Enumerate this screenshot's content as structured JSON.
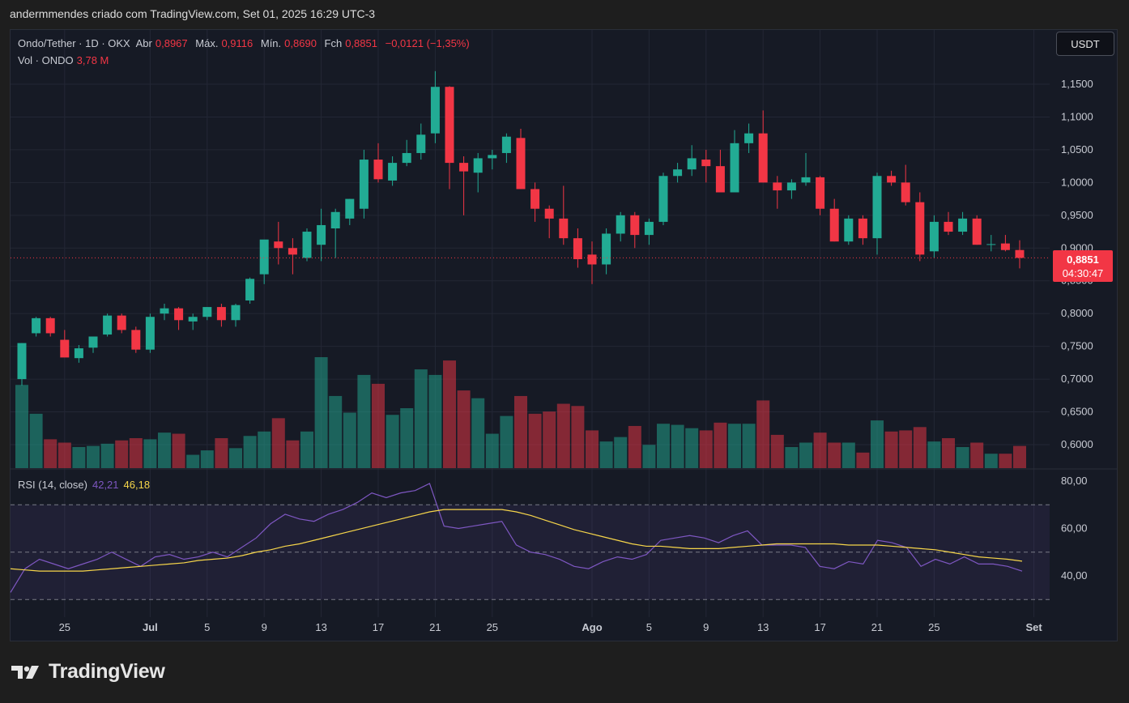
{
  "header": {
    "attribution": "andermmendes criado com TradingView.com, Set 01, 2025 16:29 UTC-3"
  },
  "legend": {
    "symbol": "Ondo/Tether · 1D · OKX",
    "open_label": "Abr",
    "open_value": "0,8967",
    "high_label": "Máx.",
    "high_value": "0,9116",
    "low_label": "Mín.",
    "low_value": "0,8690",
    "close_label": "Fch",
    "close_value": "0,8851",
    "change": "−0,0121 (−1,35%)",
    "volume_label": "Vol · ONDO",
    "volume_value": "3,78 M"
  },
  "rsi_legend": {
    "label": "RSI (14, close)",
    "rsi_value": "42,21",
    "ma_value": "46,18"
  },
  "currency_button": "USDT",
  "last_price": {
    "price": "0,8851",
    "countdown": "04:30:47"
  },
  "brand": "TradingView",
  "colors": {
    "up": "#22ab94",
    "down": "#f23645",
    "rsi_line": "#7e57c2",
    "rsi_ma": "#f7d64a",
    "background": "#161a25"
  },
  "chart_data": [
    {
      "type": "candlestick",
      "title": "Ondo/Tether · 1D · OKX",
      "price_axis_ticks": [
        "1,1500",
        "1,1000",
        "1,0500",
        "1,0000",
        "0,9500",
        "0,9000",
        "0,8500",
        "0,8000",
        "0,7500",
        "0,7000",
        "0,6500",
        "0,6000"
      ],
      "ylim": [
        0.58,
        1.18
      ],
      "x_axis_ticks": [
        {
          "label": "25",
          "index": 3
        },
        {
          "label": "Jul",
          "index": 9,
          "month": true
        },
        {
          "label": "5",
          "index": 13
        },
        {
          "label": "9",
          "index": 17
        },
        {
          "label": "13",
          "index": 21
        },
        {
          "label": "17",
          "index": 25
        },
        {
          "label": "21",
          "index": 29
        },
        {
          "label": "25",
          "index": 33
        },
        {
          "label": "Ago",
          "index": 40,
          "month": true
        },
        {
          "label": "5",
          "index": 44
        },
        {
          "label": "9",
          "index": 48
        },
        {
          "label": "13",
          "index": 52
        },
        {
          "label": "17",
          "index": 56
        },
        {
          "label": "21",
          "index": 60
        },
        {
          "label": "25",
          "index": 64
        },
        {
          "label": "Set",
          "index": 71,
          "month": true
        }
      ],
      "candles": [
        [
          0.7,
          0.755,
          0.69,
          0.755
        ],
        [
          0.77,
          0.795,
          0.765,
          0.793
        ],
        [
          0.793,
          0.795,
          0.765,
          0.77
        ],
        [
          0.76,
          0.775,
          0.735,
          0.733
        ],
        [
          0.732,
          0.752,
          0.725,
          0.747
        ],
        [
          0.748,
          0.765,
          0.74,
          0.765
        ],
        [
          0.768,
          0.8,
          0.765,
          0.797
        ],
        [
          0.797,
          0.8,
          0.77,
          0.775
        ],
        [
          0.775,
          0.78,
          0.74,
          0.745
        ],
        [
          0.745,
          0.8,
          0.74,
          0.795
        ],
        [
          0.8,
          0.815,
          0.79,
          0.808
        ],
        [
          0.808,
          0.81,
          0.775,
          0.79
        ],
        [
          0.788,
          0.8,
          0.775,
          0.795
        ],
        [
          0.795,
          0.81,
          0.79,
          0.81
        ],
        [
          0.81,
          0.815,
          0.78,
          0.79
        ],
        [
          0.79,
          0.815,
          0.78,
          0.813
        ],
        [
          0.82,
          0.855,
          0.815,
          0.853
        ],
        [
          0.86,
          0.91,
          0.845,
          0.913
        ],
        [
          0.91,
          0.94,
          0.875,
          0.9
        ],
        [
          0.9,
          0.915,
          0.86,
          0.89
        ],
        [
          0.885,
          0.93,
          0.88,
          0.925
        ],
        [
          0.905,
          0.96,
          0.88,
          0.935
        ],
        [
          0.93,
          0.96,
          0.885,
          0.955
        ],
        [
          0.945,
          0.975,
          0.935,
          0.975
        ],
        [
          0.96,
          1.05,
          0.945,
          1.035
        ],
        [
          1.035,
          1.06,
          1.0,
          1.005
        ],
        [
          1.003,
          1.04,
          0.995,
          1.03
        ],
        [
          1.03,
          1.065,
          1.025,
          1.045
        ],
        [
          1.045,
          1.09,
          1.035,
          1.073
        ],
        [
          1.075,
          1.17,
          1.06,
          1.146
        ],
        [
          1.146,
          1.147,
          0.99,
          1.03
        ],
        [
          1.03,
          1.04,
          0.95,
          1.017
        ],
        [
          1.015,
          1.045,
          0.985,
          1.037
        ],
        [
          1.037,
          1.05,
          1.02,
          1.042
        ],
        [
          1.045,
          1.075,
          1.03,
          1.07
        ],
        [
          1.068,
          1.082,
          0.99,
          0.99
        ],
        [
          0.99,
          1.0,
          0.94,
          0.96
        ],
        [
          0.96,
          0.965,
          0.915,
          0.945
        ],
        [
          0.945,
          0.995,
          0.905,
          0.915
        ],
        [
          0.915,
          0.93,
          0.87,
          0.883
        ],
        [
          0.89,
          0.91,
          0.845,
          0.875
        ],
        [
          0.875,
          0.93,
          0.86,
          0.922
        ],
        [
          0.922,
          0.955,
          0.91,
          0.95
        ],
        [
          0.95,
          0.955,
          0.9,
          0.92
        ],
        [
          0.92,
          0.945,
          0.905,
          0.94
        ],
        [
          0.94,
          1.015,
          0.935,
          1.01
        ],
        [
          1.01,
          1.03,
          1.0,
          1.02
        ],
        [
          1.02,
          1.057,
          1.01,
          1.037
        ],
        [
          1.035,
          1.05,
          1.0,
          1.025
        ],
        [
          1.025,
          1.05,
          0.985,
          0.985
        ],
        [
          0.985,
          1.08,
          0.985,
          1.06
        ],
        [
          1.06,
          1.09,
          1.045,
          1.075
        ],
        [
          1.075,
          1.11,
          1.0,
          1.0
        ],
        [
          1.0,
          1.01,
          0.96,
          0.988
        ],
        [
          0.988,
          1.005,
          0.975,
          1.0
        ],
        [
          1.0,
          1.045,
          0.995,
          1.008
        ],
        [
          1.008,
          1.01,
          0.95,
          0.96
        ],
        [
          0.96,
          0.975,
          0.91,
          0.91
        ],
        [
          0.91,
          0.95,
          0.905,
          0.945
        ],
        [
          0.945,
          0.95,
          0.905,
          0.915
        ],
        [
          0.915,
          1.015,
          0.89,
          1.01
        ],
        [
          1.01,
          1.018,
          0.995,
          1.0
        ],
        [
          1.0,
          1.027,
          0.965,
          0.97
        ],
        [
          0.97,
          0.985,
          0.88,
          0.89
        ],
        [
          0.895,
          0.95,
          0.885,
          0.94
        ],
        [
          0.94,
          0.955,
          0.92,
          0.925
        ],
        [
          0.925,
          0.955,
          0.92,
          0.945
        ],
        [
          0.945,
          0.95,
          0.905,
          0.905
        ],
        [
          0.905,
          0.92,
          0.895,
          0.906
        ],
        [
          0.907,
          0.92,
          0.895,
          0.897
        ],
        [
          0.897,
          0.912,
          0.869,
          0.885
        ]
      ],
      "volume": [
        [
          0.75,
          "up"
        ],
        [
          0.49,
          "up"
        ],
        [
          0.26,
          "down"
        ],
        [
          0.23,
          "down"
        ],
        [
          0.19,
          "up"
        ],
        [
          0.2,
          "up"
        ],
        [
          0.22,
          "up"
        ],
        [
          0.25,
          "down"
        ],
        [
          0.27,
          "down"
        ],
        [
          0.26,
          "up"
        ],
        [
          0.32,
          "up"
        ],
        [
          0.31,
          "down"
        ],
        [
          0.12,
          "up"
        ],
        [
          0.16,
          "up"
        ],
        [
          0.27,
          "down"
        ],
        [
          0.18,
          "up"
        ],
        [
          0.29,
          "up"
        ],
        [
          0.33,
          "up"
        ],
        [
          0.45,
          "down"
        ],
        [
          0.25,
          "down"
        ],
        [
          0.33,
          "up"
        ],
        [
          1.0,
          "up"
        ],
        [
          0.65,
          "up"
        ],
        [
          0.5,
          "up"
        ],
        [
          0.84,
          "up"
        ],
        [
          0.76,
          "down"
        ],
        [
          0.48,
          "up"
        ],
        [
          0.54,
          "up"
        ],
        [
          0.89,
          "up"
        ],
        [
          0.84,
          "up"
        ],
        [
          0.97,
          "down"
        ],
        [
          0.7,
          "down"
        ],
        [
          0.63,
          "up"
        ],
        [
          0.31,
          "up"
        ],
        [
          0.47,
          "up"
        ],
        [
          0.65,
          "down"
        ],
        [
          0.49,
          "down"
        ],
        [
          0.51,
          "down"
        ],
        [
          0.58,
          "down"
        ],
        [
          0.56,
          "down"
        ],
        [
          0.34,
          "down"
        ],
        [
          0.24,
          "up"
        ],
        [
          0.28,
          "up"
        ],
        [
          0.38,
          "down"
        ],
        [
          0.21,
          "up"
        ],
        [
          0.4,
          "up"
        ],
        [
          0.39,
          "up"
        ],
        [
          0.36,
          "up"
        ],
        [
          0.34,
          "down"
        ],
        [
          0.41,
          "down"
        ],
        [
          0.4,
          "up"
        ],
        [
          0.4,
          "up"
        ],
        [
          0.61,
          "down"
        ],
        [
          0.3,
          "down"
        ],
        [
          0.19,
          "up"
        ],
        [
          0.23,
          "up"
        ],
        [
          0.32,
          "down"
        ],
        [
          0.23,
          "down"
        ],
        [
          0.23,
          "up"
        ],
        [
          0.14,
          "down"
        ],
        [
          0.43,
          "up"
        ],
        [
          0.33,
          "down"
        ],
        [
          0.34,
          "down"
        ],
        [
          0.37,
          "down"
        ],
        [
          0.24,
          "up"
        ],
        [
          0.27,
          "down"
        ],
        [
          0.19,
          "up"
        ],
        [
          0.23,
          "down"
        ],
        [
          0.13,
          "up"
        ],
        [
          0.13,
          "down"
        ],
        [
          0.2,
          "down"
        ]
      ]
    },
    {
      "type": "line",
      "title": "RSI (14, close)",
      "ylim": [
        27,
        83
      ],
      "y_ticks": [
        "80,00",
        "60,00",
        "40,00"
      ],
      "bands": [
        30,
        50,
        70
      ],
      "series": [
        {
          "name": "RSI",
          "values": [
            33,
            43,
            47,
            45,
            43,
            45,
            47,
            50,
            47,
            44,
            48,
            49,
            47,
            48,
            50,
            48,
            52,
            56,
            62,
            66,
            64,
            63,
            66,
            68,
            71,
            75,
            73,
            75,
            76,
            79,
            61,
            60,
            61,
            62,
            63,
            53,
            50,
            49,
            47,
            44,
            43,
            46,
            48,
            47,
            49,
            55,
            56,
            57,
            56,
            54,
            57,
            59,
            53,
            53,
            53,
            52,
            44,
            43,
            46,
            45,
            55,
            54,
            52,
            44,
            47,
            45,
            48,
            45,
            45,
            44,
            42
          ]
        },
        {
          "name": "RSI-based MA",
          "values": [
            43,
            42.5,
            42,
            42,
            42,
            42,
            42.5,
            43,
            43.5,
            44,
            44.5,
            45,
            45.5,
            46.5,
            47,
            47.5,
            48.5,
            50,
            51,
            52.5,
            53.5,
            55,
            56.5,
            58,
            59.5,
            61,
            62.5,
            64,
            65.5,
            67,
            68,
            68,
            68,
            68,
            68,
            67,
            65.5,
            63.5,
            61.5,
            59.5,
            58,
            56.5,
            55,
            53.5,
            52.5,
            52.5,
            52,
            51.5,
            51.5,
            51.5,
            52,
            52.5,
            53,
            53.5,
            53.5,
            53.5,
            53.5,
            53.5,
            53,
            53,
            53,
            52.5,
            52,
            51.5,
            51,
            50,
            49,
            48,
            47.5,
            47,
            46.2
          ]
        }
      ]
    }
  ]
}
